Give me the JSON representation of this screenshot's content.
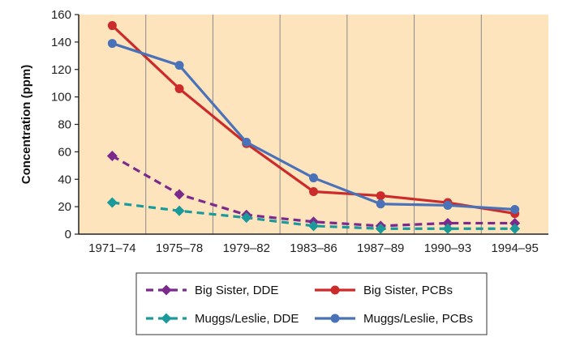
{
  "chart_data": {
    "type": "line",
    "categories": [
      "1971–74",
      "1975–78",
      "1979–82",
      "1983–86",
      "1987–89",
      "1990–93",
      "1994–95"
    ],
    "ylabel": "Concentration (ppm)",
    "ylim": [
      0,
      160
    ],
    "yticks": [
      0,
      20,
      40,
      60,
      80,
      100,
      120,
      140,
      160
    ],
    "grid": "vertical",
    "legend_position": "bottom",
    "background_color": "#fde4bd",
    "series": [
      {
        "name": "Big Sister, DDE",
        "values": [
          57,
          29,
          14,
          9,
          6,
          8,
          8
        ],
        "color": "#7b2a8c",
        "dashed": true,
        "marker": "diamond"
      },
      {
        "name": "Muggs/Leslie, DDE",
        "values": [
          23,
          17,
          12,
          6,
          4,
          4,
          4
        ],
        "color": "#1a9a9a",
        "dashed": true,
        "marker": "diamond"
      },
      {
        "name": "Big Sister, PCBs",
        "values": [
          152,
          106,
          66,
          31,
          28,
          23,
          15
        ],
        "color": "#cc2b2b",
        "dashed": false,
        "marker": "circle"
      },
      {
        "name": "Muggs/Leslie, PCBs",
        "values": [
          139,
          123,
          67,
          41,
          22,
          21,
          18
        ],
        "color": "#4a72b8",
        "dashed": false,
        "marker": "circle"
      }
    ]
  }
}
